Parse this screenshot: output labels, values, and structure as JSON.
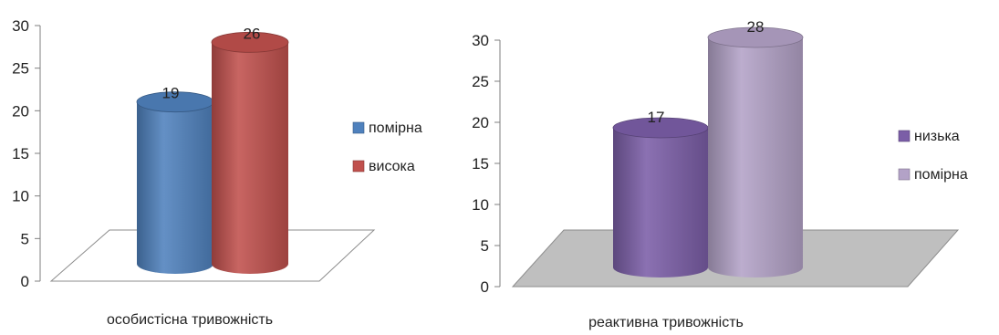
{
  "chart_data": [
    {
      "type": "bar",
      "style": "3d-cylinder",
      "categories": [
        "особистісна тривожність"
      ],
      "series": [
        {
          "name": "помірна",
          "values": [
            19
          ],
          "color": "#4f81bd"
        },
        {
          "name": "висока",
          "values": [
            26
          ],
          "color": "#c0504d"
        }
      ],
      "xlabel": "особистісна тривожність",
      "ylim": [
        0,
        30
      ],
      "yticks": [
        0,
        5,
        10,
        15,
        20,
        25,
        30
      ],
      "floor_color": "#ffffff",
      "legend": "right",
      "grid": false
    },
    {
      "type": "bar",
      "style": "3d-cylinder",
      "categories": [
        "реактивна тривожність"
      ],
      "series": [
        {
          "name": "низька",
          "values": [
            17
          ],
          "color": "#7b5ea7"
        },
        {
          "name": "помірна",
          "values": [
            28
          ],
          "color": "#b3a2c7"
        }
      ],
      "xlabel": "реактивна тривожність",
      "ylim": [
        0,
        30
      ],
      "yticks": [
        0,
        5,
        10,
        15,
        20,
        25,
        30
      ],
      "floor_color": "#bfbfbf",
      "legend": "right",
      "grid": false
    }
  ]
}
